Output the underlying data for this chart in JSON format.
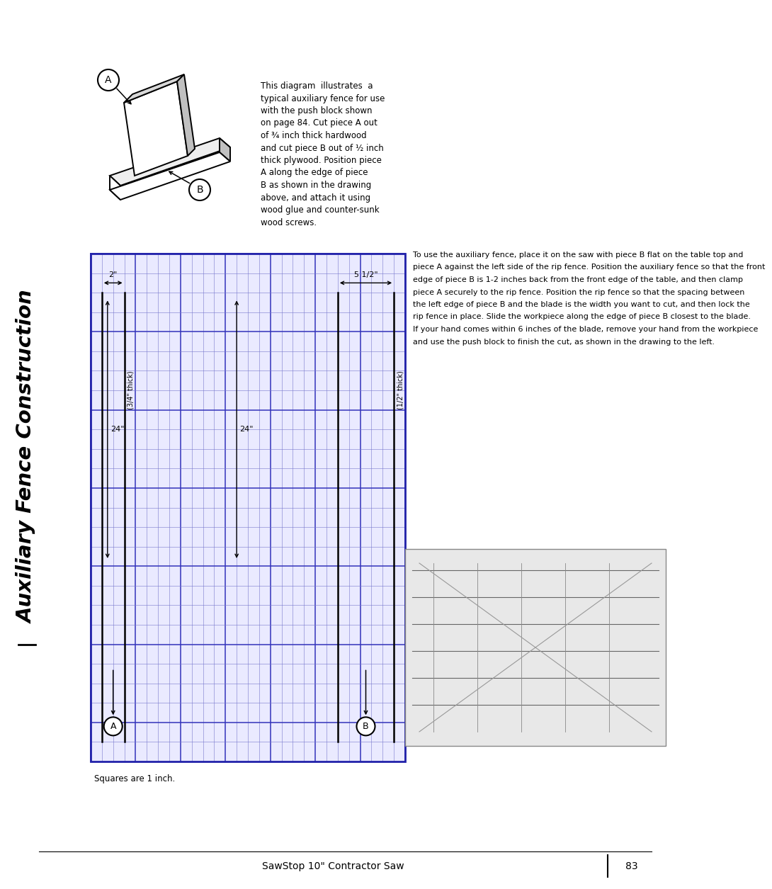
{
  "title": "Auxiliary Fence Construction",
  "page_bg": "#ffffff",
  "text_color": "#000000",
  "grid_cols": 28,
  "grid_rows": 26,
  "squares_label": "Squares are 1 inch.",
  "footer_text": "SawStop 10\" Contractor Saw",
  "page_number": "83",
  "dim_2in": "2\"",
  "dim_5half": "5 1/2\"",
  "dim_24a": "24\"",
  "dim_24b": "24\"",
  "label_34": "(3/4\" thick)",
  "label_12": "(1/2\" thick)",
  "label_A": "A",
  "label_B": "B",
  "desc_lines": [
    "This diagram  illustrates  a",
    "typical auxiliary fence for use",
    "with the push block shown",
    "on page 84. Cut piece A out",
    "of ¾ inch thick hardwood",
    "and cut piece B out of ½ inch",
    "thick plywood. Position piece",
    "A along the edge of piece",
    "B as shown in the drawing",
    "above, and attach it using",
    "wood glue and counter-sunk",
    "wood screws."
  ],
  "para_lines": [
    "To use the auxiliary fence, place it on the saw with piece B flat on the table top and",
    "piece A against the left side of the rip fence. Position the auxiliary fence so that the front",
    "edge of piece B is 1-2 inches back from the front edge of the table, and then clamp",
    "piece A securely to the rip fence. Position the rip fence so that the spacing between",
    "the left edge of piece B and the blade is the width you want to cut, and then lock the",
    "rip fence in place. Slide the workpiece along the edge of piece B closest to the blade.",
    "If your hand comes within 6 inches of the blade, remove your hand from the workpiece",
    "and use the push block to finish the cut, as shown in the drawing to the left."
  ]
}
